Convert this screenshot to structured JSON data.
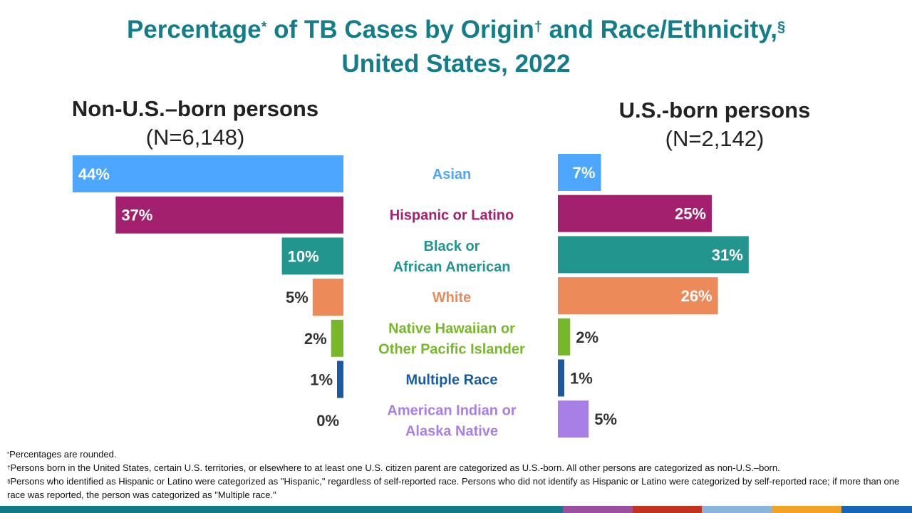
{
  "title": {
    "line1_a": "Percentage",
    "mark1": "*",
    "line1_b": " of TB Cases by Origin",
    "mark2": "†",
    "line1_c": " and Race/Ethnicity,",
    "mark3": "§",
    "line2": "United States, 2022"
  },
  "chart_data": {
    "type": "bar",
    "orientation": "horizontal-butterfly",
    "categories": [
      "Asian",
      "Hispanic or Latino",
      "Black or African American",
      "White",
      "Native Hawaiian or Other Pacific Islander",
      "Multiple Race",
      "American Indian or Alaska Native"
    ],
    "category_lines": [
      [
        "Asian"
      ],
      [
        "Hispanic or Latino"
      ],
      [
        "Black or",
        "African American"
      ],
      [
        "White"
      ],
      [
        "Native Hawaiian or",
        "Other Pacific Islander"
      ],
      [
        "Multiple Race"
      ],
      [
        "American Indian or",
        "Alaska Native"
      ]
    ],
    "colors": [
      "#4da6ff",
      "#a3206f",
      "#23958f",
      "#ec8a5a",
      "#76b82a",
      "#1a5aa0",
      "#a87fe6"
    ],
    "label_colors": [
      "#4da6ff",
      "#a3206f",
      "#23958f",
      "#ec8a5a",
      "#76b82a",
      "#1a5aa0",
      "#a87fe6"
    ],
    "series": [
      {
        "name": "Non-U.S.–born persons",
        "n_label": "(N=6,148)",
        "values": [
          44,
          37,
          10,
          5,
          2,
          1,
          0
        ]
      },
      {
        "name": "U.S.-born persons",
        "n_label": "(N=2,142)",
        "values": [
          7,
          25,
          31,
          26,
          2,
          1,
          5
        ]
      }
    ],
    "unit": "%"
  },
  "footnotes": [
    {
      "mark": "*",
      "text": "Percentages are rounded."
    },
    {
      "mark": "†",
      "text": "Persons born  in the United States, certain U.S. territories, or elsewhere to at least one U.S. citizen parent are categorized as U.S.-born. All other persons are categorized as non-U.S.–born."
    },
    {
      "mark": "§",
      "text": "Persons who identified as Hispanic or Latino were categorized as \"Hispanic,\" regardless of self-reported race. Persons who did not identify as Hispanic or Latino were categorized by self-reported race; if more than one race was reported,  the person was categorized as \"Multiple race.\""
    }
  ],
  "bottom_bar_colors": [
    "#0e7b86",
    "#9b4f9e",
    "#c0331f",
    "#8ab4dc",
    "#f2a224",
    "#1565b8"
  ]
}
